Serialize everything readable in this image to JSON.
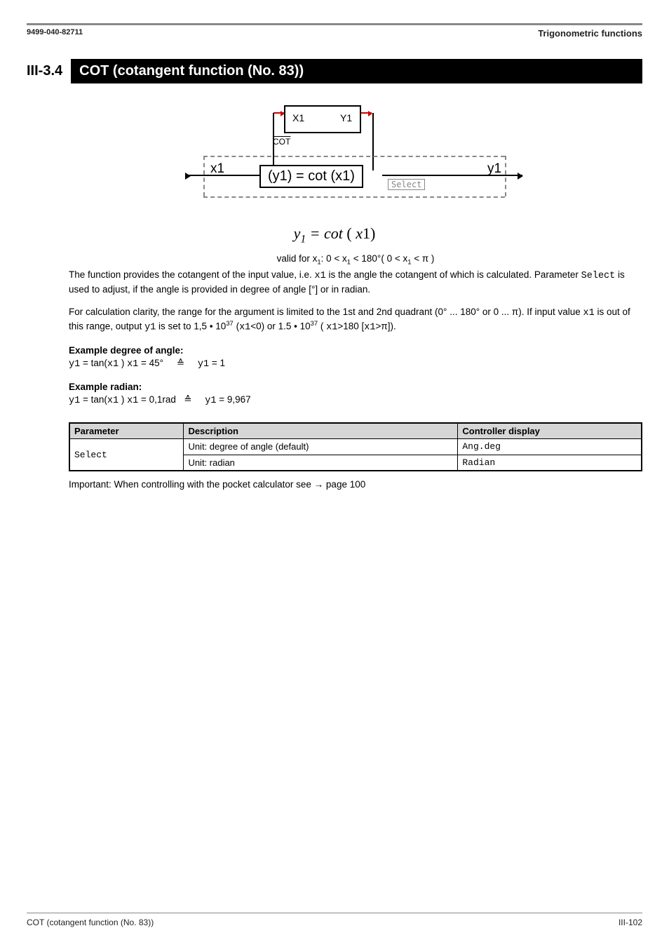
{
  "header": {
    "doc_id": "9499-040-82711",
    "chapter": "Trigonometric functions"
  },
  "section": {
    "number": "III-3.4",
    "title": "COT (cotangent function (No. 83))"
  },
  "diagram": {
    "top_in": "X1",
    "top_out": "Y1",
    "cot_label": "COT",
    "left_port": "x1",
    "right_port": "y1",
    "main_box": "(y1) = cot (x1)",
    "select_box": "Select"
  },
  "formula": {
    "lhs_var": "y",
    "lhs_sub": "1",
    "eq": " = ",
    "fn": "cot",
    "open": " ( ",
    "rhs_var": "x",
    "rhs_sub": "1",
    "close": ")"
  },
  "valid_text": {
    "prefix": "valid   for x",
    "sub1": "1",
    "part1": ": 0 < x",
    "sub2": "1",
    "part2": " < 180°( 0 < x",
    "sub3": "1",
    "part3": " < π )"
  },
  "para1": {
    "t1": "The function provides the cotangent of the input value, i.e. ",
    "v1": "x1",
    "t2": " is the angle the cotangent of which is calculated. Parameter ",
    "v2": "Select",
    "t3": " is used  to adjust, if the angle is provided in degree of angle [°] or in radian."
  },
  "para2": {
    "t1": "For calculation clarity, the range for the argument is limited to the 1st and 2nd quadrant (0° ... 180° or 0 ...  π). If input value ",
    "v1": "x1",
    "t2": " is out of this range, output ",
    "v2": "y1",
    "t3": " is set to 1,5 • 10",
    "sup1": "37",
    "t4": " (",
    "v3": "x1",
    "t5": "<0)  or 1.5 • 10",
    "sup2": "37",
    "t6": " ( ",
    "v4": "x1",
    "t7": ">180 [",
    "v5": "x1",
    "t8": ">π])."
  },
  "ex_deg": {
    "head": "Example degree of angle:",
    "l_y1": "y1",
    "l_eq1": " = tan(",
    "l_x1a": "x1",
    "l_close": " ) ",
    "l_x1b": "x1",
    "l_val": " = 45°",
    "triangle": "≙",
    "r_y1": "y1",
    "r_val": " = 1"
  },
  "ex_rad": {
    "head": "Example radian:",
    "l_y1": "y1",
    "l_eq1": " = tan(",
    "l_x1a": "x1",
    "l_close": " ) ",
    "l_x1b": "x1",
    "l_val": " = 0,1rad",
    "triangle": "≙",
    "r_y1": "y1",
    "r_val": " = 9,967"
  },
  "table": {
    "h1": "Parameter",
    "h2": "Description",
    "h3": "Controller display",
    "r1c1": "Select",
    "r1c2": "Unit: degree of angle (default)",
    "r1c3": "Ang.deg",
    "r2c2": "Unit: radian",
    "r2c3": "Radian"
  },
  "note": {
    "t1": "Important: When controlling with the pocket calculator see  →   page 100"
  },
  "footer": {
    "left": "COT (cotangent function (No. 83))",
    "right": "III-102"
  },
  "colors": {
    "rule": "#888888",
    "accent": "#c00000",
    "table_head": "#d6d6d6"
  }
}
